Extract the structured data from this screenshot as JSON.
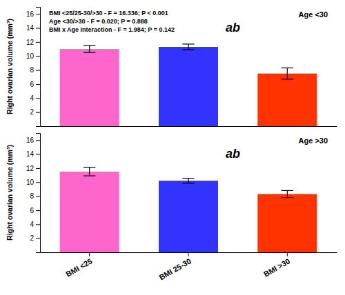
{
  "chart_data": [
    {
      "type": "bar",
      "categories": [
        "BMI <25",
        "BMI 25-30",
        "BMI >30"
      ],
      "values": [
        11.0,
        11.3,
        7.5
      ],
      "errors": [
        0.5,
        0.4,
        0.8
      ],
      "colors": [
        "#FF66CC",
        "#3333FF",
        "#FF3300"
      ],
      "ylabel": "Right ovarian volume (mm³)",
      "ylim": [
        0,
        17
      ],
      "yticks": [
        2,
        4,
        6,
        8,
        10,
        12,
        14,
        16
      ],
      "tick_labels": "y",
      "annotations": [
        "Age <30",
        "ab",
        "BMI <25/25-30/>30 - F = 16.336; P < 0.001",
        "Age <30/>30 - F = 0.020; P = 0.888",
        "BMI x Age Interaction - F = 1.984; P = 0.142"
      ]
    },
    {
      "type": "bar",
      "categories": [
        "BMI <25",
        "BMI 25-30",
        "BMI >30"
      ],
      "values": [
        11.5,
        10.2,
        8.3
      ],
      "errors": [
        0.6,
        0.35,
        0.5
      ],
      "colors": [
        "#FF66CC",
        "#3333FF",
        "#FF3300"
      ],
      "ylabel": "Right ovarian volume (mm³)",
      "ylim": [
        0,
        17
      ],
      "yticks": [
        2,
        4,
        6,
        8,
        10,
        12,
        14,
        16
      ],
      "annotations": [
        "Age >30",
        "ab"
      ]
    }
  ]
}
